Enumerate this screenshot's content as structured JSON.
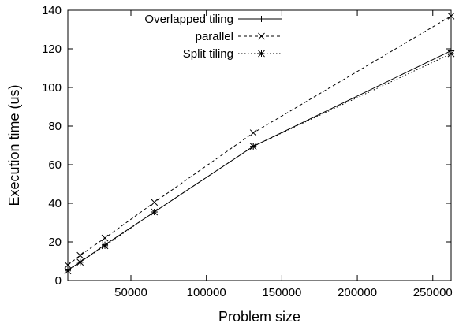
{
  "chart_data": {
    "type": "line",
    "title": "",
    "xlabel": "Problem size",
    "ylabel": "Execution time (us)",
    "xlim": [
      8192,
      262144
    ],
    "ylim": [
      0,
      140
    ],
    "xticks": [
      50000,
      100000,
      150000,
      200000,
      250000
    ],
    "yticks": [
      0,
      20,
      40,
      60,
      80,
      100,
      120,
      140
    ],
    "grid": false,
    "legend_position": "top-center",
    "series": [
      {
        "name": "Overlapped tiling",
        "marker": "plus",
        "dash": "solid",
        "x": [
          8192,
          16384,
          32768,
          65536,
          131072,
          262144
        ],
        "y": [
          5.5,
          9.5,
          18.5,
          35.5,
          69.5,
          119
        ]
      },
      {
        "name": "parallel",
        "marker": "cross",
        "dash": "dashed",
        "x": [
          8192,
          16384,
          32768,
          65536,
          131072,
          262144
        ],
        "y": [
          8,
          13,
          22,
          40.5,
          76.5,
          137
        ]
      },
      {
        "name": "Split tiling",
        "marker": "star",
        "dash": "dotted",
        "x": [
          8192,
          16384,
          32768,
          65536,
          131072,
          262144
        ],
        "y": [
          5,
          9.5,
          18,
          35.5,
          69.5,
          117.5
        ]
      }
    ]
  }
}
